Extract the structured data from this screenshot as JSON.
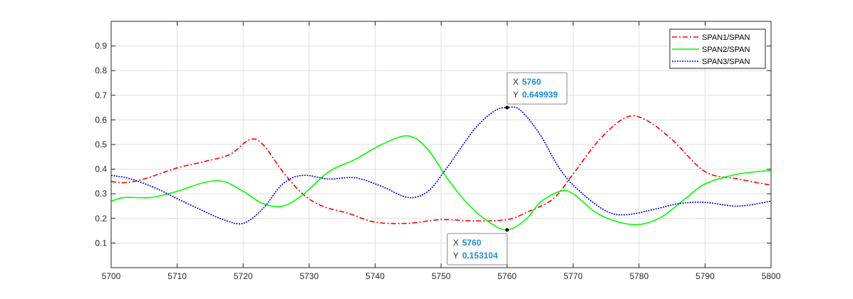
{
  "chart_data": {
    "type": "line",
    "title": "",
    "xlabel": "",
    "ylabel": "",
    "xlim": [
      5700,
      5800
    ],
    "ylim": [
      0,
      1
    ],
    "xticks": [
      5700,
      5710,
      5720,
      5730,
      5740,
      5750,
      5760,
      5770,
      5780,
      5790,
      5800
    ],
    "yticks": [
      0.1,
      0.2,
      0.3,
      0.4,
      0.5,
      0.6,
      0.7,
      0.8,
      0.9
    ],
    "grid": true,
    "legend_position": "top-right",
    "series": [
      {
        "name": "SPAN1/SPAN",
        "color": "#ff0000",
        "style": "dash-dot",
        "x": [
          5700,
          5702,
          5705,
          5710,
          5714,
          5718,
          5721,
          5723,
          5726,
          5729,
          5732,
          5736,
          5740,
          5745,
          5750,
          5755,
          5760,
          5763,
          5767,
          5770,
          5774,
          5778,
          5781,
          5785,
          5790,
          5795,
          5800
        ],
        "y": [
          0.35,
          0.345,
          0.36,
          0.405,
          0.43,
          0.46,
          0.52,
          0.5,
          0.39,
          0.3,
          0.25,
          0.22,
          0.185,
          0.18,
          0.195,
          0.19,
          0.195,
          0.225,
          0.28,
          0.38,
          0.52,
          0.61,
          0.6,
          0.52,
          0.39,
          0.36,
          0.335
        ]
      },
      {
        "name": "SPAN2/SPAN",
        "color": "#00ff00",
        "style": "solid",
        "x": [
          5700,
          5702,
          5706,
          5710,
          5714,
          5717,
          5720,
          5723,
          5726,
          5729,
          5733,
          5737,
          5741,
          5745,
          5748,
          5751,
          5754,
          5757,
          5760,
          5763,
          5765,
          5768,
          5770,
          5774,
          5779,
          5783,
          5787,
          5790,
          5795,
          5800
        ],
        "y": [
          0.27,
          0.285,
          0.285,
          0.31,
          0.345,
          0.35,
          0.31,
          0.26,
          0.25,
          0.295,
          0.39,
          0.44,
          0.5,
          0.535,
          0.48,
          0.36,
          0.26,
          0.19,
          0.153104,
          0.2,
          0.265,
          0.31,
          0.3,
          0.215,
          0.175,
          0.2,
          0.28,
          0.34,
          0.38,
          0.395
        ]
      },
      {
        "name": "SPAN3/SPAN",
        "color": "#0000ff",
        "style": "dotted",
        "x": [
          5700,
          5703,
          5707,
          5710,
          5714,
          5717,
          5720,
          5723,
          5726,
          5729,
          5733,
          5737,
          5741,
          5745,
          5748,
          5751,
          5755,
          5758,
          5760,
          5762,
          5765,
          5768,
          5771,
          5775,
          5778,
          5782,
          5786,
          5790,
          5795,
          5800
        ],
        "y": [
          0.375,
          0.36,
          0.32,
          0.28,
          0.23,
          0.195,
          0.18,
          0.24,
          0.34,
          0.375,
          0.36,
          0.365,
          0.33,
          0.285,
          0.31,
          0.41,
          0.56,
          0.635,
          0.649939,
          0.64,
          0.54,
          0.4,
          0.31,
          0.23,
          0.215,
          0.235,
          0.26,
          0.265,
          0.25,
          0.27
        ]
      }
    ],
    "annotations": [
      {
        "series": "SPAN3/SPAN",
        "x_label": "X",
        "x_value": "5760",
        "y_label": "Y",
        "y_value": "0.649939",
        "x": 5760,
        "y": 0.649939,
        "placement": "above-right"
      },
      {
        "series": "SPAN2/SPAN",
        "x_label": "X",
        "x_value": "5760",
        "y_label": "Y",
        "y_value": "0.153104",
        "x": 5760,
        "y": 0.153104,
        "placement": "below-left"
      }
    ]
  }
}
